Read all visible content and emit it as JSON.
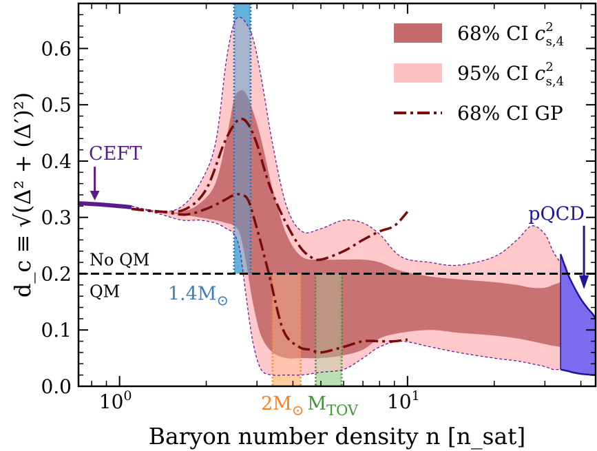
{
  "chart_data": {
    "type": "area",
    "xlabel": "Baryon number density n [n_sat]",
    "ylabel": "d_c ≡ √(Δ² + (Δ′)²)",
    "x_scale": "log",
    "xlim": [
      0.72,
      45
    ],
    "ylim": [
      0,
      0.68
    ],
    "x_major_ticks": [
      {
        "value": 1,
        "base": "10",
        "exp": "0"
      },
      {
        "value": 10,
        "base": "10",
        "exp": "1"
      }
    ],
    "y_ticks": [
      {
        "value": 0.0,
        "label": "0.0"
      },
      {
        "value": 0.1,
        "label": "0.1"
      },
      {
        "value": 0.2,
        "label": "0.2"
      },
      {
        "value": 0.3,
        "label": "0.3"
      },
      {
        "value": 0.4,
        "label": "0.4"
      },
      {
        "value": 0.5,
        "label": "0.5"
      },
      {
        "value": 0.6,
        "label": "0.6"
      }
    ],
    "threshold": {
      "y": 0.2,
      "label_above": "No QM",
      "label_below": "QM"
    },
    "legend": {
      "position": "top-right",
      "entries": [
        {
          "id": "ci68",
          "main": "68% CI ",
          "sym": "c",
          "sup": "2",
          "sub": "s,4",
          "color": "#c46a6d",
          "kind": "patch"
        },
        {
          "id": "ci95",
          "main": "95% CI ",
          "sym": "c",
          "sup": "2",
          "sub": "s,4",
          "color": "#ffc2c4",
          "kind": "patch"
        },
        {
          "id": "gp",
          "main": "68% CI GP",
          "color": "#7b0a0a",
          "kind": "dashdot"
        }
      ]
    },
    "series": [
      {
        "name": "95% CI c²s,4",
        "color": "#ffc2c4",
        "edge_color": "#6a1b9a",
        "x": [
          1.1,
          1.4,
          1.65,
          1.9,
          2.15,
          2.35,
          2.5,
          2.62,
          2.75,
          2.9,
          3.1,
          3.4,
          3.8,
          4.3,
          5.0,
          6.0,
          7.0,
          8.0,
          9.5,
          12,
          15,
          20,
          24,
          27,
          30,
          32,
          34,
          36
        ],
        "upper": [
          0.32,
          0.31,
          0.32,
          0.36,
          0.43,
          0.58,
          0.645,
          0.655,
          0.645,
          0.62,
          0.55,
          0.43,
          0.32,
          0.275,
          0.28,
          0.295,
          0.29,
          0.27,
          0.23,
          0.22,
          0.215,
          0.23,
          0.26,
          0.285,
          0.27,
          0.24,
          0.22,
          0.21
        ],
        "lower": [
          0.32,
          0.305,
          0.295,
          0.295,
          0.29,
          0.28,
          0.27,
          0.24,
          0.16,
          0.08,
          0.03,
          0.02,
          0.02,
          0.02,
          0.025,
          0.03,
          0.05,
          0.07,
          0.08,
          0.07,
          0.06,
          0.05,
          0.045,
          0.04,
          0.035,
          0.03,
          0.03,
          0.03
        ]
      },
      {
        "name": "68% CI c²s,4",
        "color": "#c46a6d",
        "x": [
          1.1,
          1.4,
          1.65,
          1.9,
          2.15,
          2.35,
          2.5,
          2.62,
          2.75,
          2.9,
          3.1,
          3.4,
          3.8,
          4.3,
          5.0,
          6.0,
          7.0,
          8.0,
          9.5,
          12,
          15,
          20,
          24,
          27,
          30,
          32,
          34,
          36
        ],
        "upper": [
          0.32,
          0.31,
          0.31,
          0.325,
          0.36,
          0.44,
          0.51,
          0.525,
          0.52,
          0.49,
          0.44,
          0.35,
          0.27,
          0.23,
          0.225,
          0.225,
          0.225,
          0.22,
          0.205,
          0.195,
          0.19,
          0.185,
          0.18,
          0.175,
          0.175,
          0.18,
          0.185,
          0.19
        ],
        "lower": [
          0.32,
          0.31,
          0.305,
          0.3,
          0.295,
          0.29,
          0.285,
          0.27,
          0.22,
          0.15,
          0.09,
          0.06,
          0.05,
          0.05,
          0.05,
          0.055,
          0.065,
          0.085,
          0.095,
          0.1,
          0.095,
          0.09,
          0.085,
          0.08,
          0.075,
          0.072,
          0.07,
          0.07
        ]
      },
      {
        "name": "68% CI GP",
        "color": "#7b0a0a",
        "x_upper": [
          1.1,
          1.4,
          1.7,
          2.0,
          2.3,
          2.5,
          2.65,
          2.8,
          3.0,
          3.3,
          3.7,
          4.2,
          4.6,
          5.0,
          6.0,
          7.0,
          8.0,
          9.0,
          10.0
        ],
        "upper": [
          0.315,
          0.31,
          0.315,
          0.35,
          0.43,
          0.465,
          0.475,
          0.465,
          0.43,
          0.36,
          0.3,
          0.25,
          0.23,
          0.225,
          0.24,
          0.26,
          0.275,
          0.285,
          0.31
        ],
        "x_lower": [
          1.1,
          1.4,
          1.7,
          2.0,
          2.3,
          2.5,
          2.65,
          2.8,
          3.0,
          3.3,
          3.7,
          4.2,
          4.6,
          5.0,
          6.0,
          7.0,
          8.0,
          9.0,
          10.0
        ],
        "lower": [
          0.315,
          0.31,
          0.305,
          0.315,
          0.33,
          0.34,
          0.34,
          0.33,
          0.28,
          0.2,
          0.1,
          0.07,
          0.065,
          0.06,
          0.07,
          0.08,
          0.08,
          0.08,
          0.083
        ]
      }
    ],
    "cefft": {
      "label": "CEFT",
      "color": "#5b1a8c",
      "x": [
        0.72,
        0.85,
        1.0,
        1.1
      ],
      "y": [
        0.325,
        0.323,
        0.32,
        0.318
      ],
      "arrow_x": 0.82,
      "arrow_from": 0.39,
      "arrow_to": 0.33
    },
    "pqcd": {
      "label": "pQCD",
      "color": "#7b6cf0",
      "edge_color": "#1f1596",
      "x": [
        34.0,
        36,
        38,
        40,
        42,
        44,
        45
      ],
      "upper": [
        0.235,
        0.2,
        0.175,
        0.155,
        0.14,
        0.128,
        0.12
      ],
      "lower": [
        0.03,
        0.027,
        0.024,
        0.022,
        0.021,
        0.02,
        0.02
      ],
      "arrow_x": 41,
      "arrow_from": 0.3,
      "arrow_to": 0.175
    },
    "mass_bands": [
      {
        "id": "m14",
        "label": "1.4M",
        "symbol": "⊙",
        "x0": 2.5,
        "x1": 2.85,
        "ymin": 0.2,
        "ymax": 0.68,
        "color": "#4aa3d6",
        "line": "#2b6cb0"
      },
      {
        "id": "m2",
        "label": "2M",
        "symbol": "⊙",
        "x0": 3.4,
        "x1": 4.25,
        "ymin": 0.0,
        "ymax": 0.2,
        "color": "#ffc38a",
        "line": "#ff7f1e"
      },
      {
        "id": "mtov",
        "label": "M",
        "sub": "TOV",
        "x0": 4.8,
        "x1": 5.9,
        "ymin": 0.0,
        "ymax": 0.2,
        "color": "#a8d8a0",
        "line": "#2e8b22"
      }
    ]
  }
}
